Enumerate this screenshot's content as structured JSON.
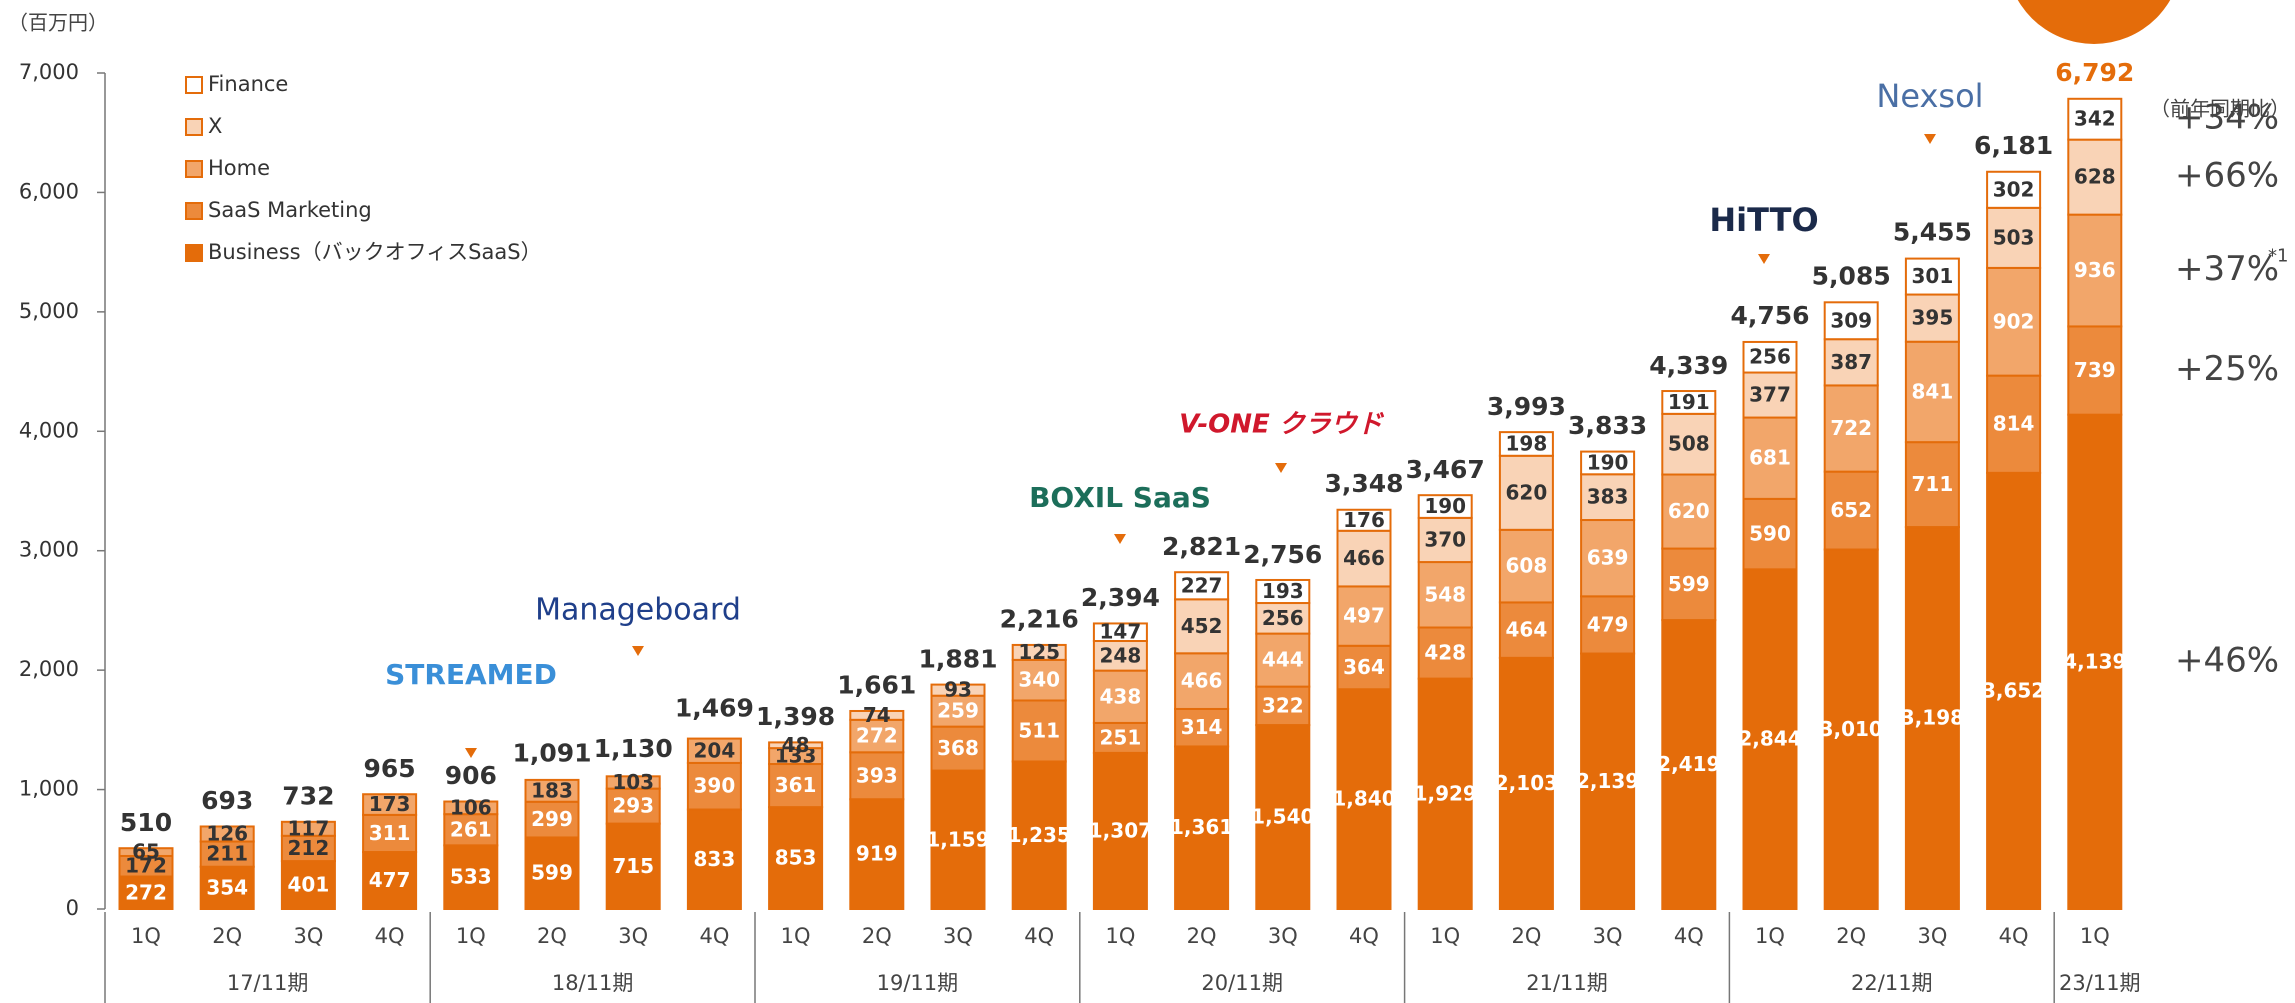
{
  "chart_data": {
    "type": "stacked_bar",
    "unit_label": "（百万円）",
    "ylim": [
      0,
      7000
    ],
    "yticks": [
      0,
      {
        "value": 1000,
        "label": "1,000"
      },
      {
        "value": 2000,
        "label": "2,000"
      },
      {
        "value": 3000,
        "label": "3,000"
      },
      {
        "value": 4000,
        "label": "4,000"
      },
      {
        "value": 5000,
        "label": "5,000"
      },
      {
        "value": 6000,
        "label": "6,000"
      },
      {
        "value": 7000,
        "label": "7,000"
      }
    ],
    "groups": [
      {
        "name": "17/11期",
        "categories": [
          "1Q",
          "2Q",
          "3Q",
          "4Q"
        ]
      },
      {
        "name": "18/11期",
        "categories": [
          "1Q",
          "2Q",
          "3Q",
          "4Q"
        ]
      },
      {
        "name": "19/11期",
        "categories": [
          "1Q",
          "2Q",
          "3Q",
          "4Q"
        ]
      },
      {
        "name": "20/11期",
        "categories": [
          "1Q",
          "2Q",
          "3Q",
          "4Q"
        ]
      },
      {
        "name": "21/11期",
        "categories": [
          "1Q",
          "2Q",
          "3Q",
          "4Q"
        ]
      },
      {
        "name": "22/11期",
        "categories": [
          "1Q",
          "2Q",
          "3Q",
          "4Q"
        ]
      },
      {
        "name": "23/11期",
        "categories": [
          "1Q"
        ]
      }
    ],
    "series": [
      {
        "name": "Business（バックオフィスSaaS）",
        "color": "#e46c0a",
        "growth": "+46%",
        "values": [
          272,
          354,
          401,
          477,
          533,
          599,
          715,
          833,
          853,
          919,
          1159,
          1235,
          1307,
          1361,
          1540,
          1840,
          1929,
          2103,
          2139,
          2419,
          2844,
          3010,
          3198,
          3652,
          4139
        ],
        "value_labels": [
          "272",
          "354",
          "401",
          "477",
          "533",
          "599",
          "715",
          "833",
          "853",
          "919",
          "1,159",
          "1,235",
          "1,307",
          "1,361",
          "1,540",
          "1,840",
          "1,929",
          "2,103",
          "2,139",
          "2,419",
          "2,844",
          "3,010",
          "3,198",
          "3,652",
          "4,139"
        ]
      },
      {
        "name": "SaaS Marketing",
        "color": "#ec8a3c",
        "growth": "+25%",
        "values": [
          172,
          211,
          212,
          311,
          261,
          299,
          293,
          390,
          361,
          393,
          368,
          511,
          251,
          314,
          322,
          364,
          428,
          464,
          479,
          599,
          590,
          652,
          711,
          814,
          739
        ],
        "value_labels": [
          "172",
          "211",
          "212",
          "311",
          "261",
          "299",
          "293",
          "390",
          "361",
          "393",
          "368",
          "511",
          "251",
          "314",
          "322",
          "364",
          "428",
          "464",
          "479",
          "599",
          "590",
          "652",
          "711",
          "814",
          "739"
        ]
      },
      {
        "name": "Home",
        "color": "#f2a66a",
        "growth": "+37%",
        "growth_note": "*1",
        "values": [
          65,
          126,
          117,
          173,
          106,
          183,
          103,
          204,
          133,
          272,
          259,
          340,
          438,
          466,
          444,
          497,
          548,
          608,
          639,
          620,
          681,
          722,
          841,
          902,
          936
        ],
        "value_labels": [
          "65",
          "126",
          "117",
          "173",
          "106",
          "183",
          "103",
          "204",
          "133",
          "272",
          "259",
          "340",
          "438",
          "466",
          "444",
          "497",
          "548",
          "608",
          "639",
          "620",
          "681",
          "722",
          "841",
          "902",
          "936"
        ]
      },
      {
        "name": "X",
        "color": "#f9d3b6",
        "growth": "+66%",
        "values": [
          null,
          null,
          null,
          null,
          null,
          null,
          null,
          null,
          48,
          74,
          93,
          125,
          248,
          452,
          256,
          466,
          370,
          620,
          383,
          508,
          377,
          387,
          395,
          503,
          628
        ],
        "value_labels": [
          null,
          null,
          null,
          null,
          null,
          null,
          null,
          null,
          "48",
          "74",
          "93",
          "125",
          "248",
          "452",
          "256",
          "466",
          "370",
          "620",
          "383",
          "508",
          "377",
          "387",
          "395",
          "503",
          "628"
        ]
      },
      {
        "name": "Finance",
        "color": "#ffffff",
        "growth": "+34%",
        "values": [
          null,
          null,
          null,
          null,
          null,
          null,
          null,
          null,
          null,
          null,
          null,
          null,
          147,
          227,
          193,
          176,
          190,
          198,
          190,
          191,
          256,
          309,
          301,
          302,
          342
        ],
        "value_labels": [
          null,
          null,
          null,
          null,
          null,
          null,
          null,
          null,
          null,
          null,
          null,
          null,
          "147",
          "227",
          "193",
          "176",
          "190",
          "198",
          "190",
          "191",
          "256",
          "309",
          "301",
          "302",
          "342"
        ]
      }
    ],
    "totals": {
      "values": [
        510,
        693,
        732,
        965,
        906,
        1091,
        1130,
        1469,
        1398,
        1661,
        1881,
        2216,
        2394,
        2821,
        2756,
        3348,
        3467,
        3993,
        3833,
        4339,
        4756,
        5085,
        5455,
        6181,
        6792
      ],
      "value_labels": [
        "510",
        "693",
        "732",
        "965",
        "906",
        "1,091",
        "1,130",
        "1,469",
        "1,398",
        "1,661",
        "1,881",
        "2,216",
        "2,394",
        "2,821",
        "2,756",
        "3,348",
        "3,467",
        "3,993",
        "3,833",
        "4,339",
        "4,756",
        "5,085",
        "5,455",
        "6,181",
        "6,792"
      ]
    },
    "growth_header": "（前年同期比）",
    "annotations": [
      "STREAMED",
      "Manageboard",
      "BOXIL SaaS",
      "V-ONE クラウド",
      "HiTTO",
      "Nexsol"
    ]
  }
}
